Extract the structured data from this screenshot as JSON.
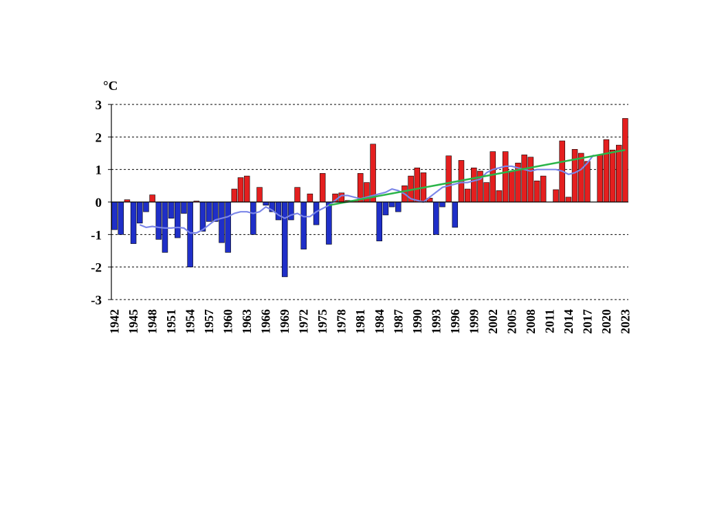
{
  "chart_data": {
    "type": "bar",
    "unit_label": "°C",
    "ylim": [
      -3,
      3
    ],
    "y_ticks": [
      "3",
      "2",
      "1",
      "0",
      "-1",
      "-2",
      "-3"
    ],
    "grid": true,
    "x": [
      1942,
      1943,
      1944,
      1945,
      1946,
      1947,
      1948,
      1949,
      1950,
      1951,
      1952,
      1953,
      1954,
      1955,
      1956,
      1957,
      1958,
      1959,
      1960,
      1961,
      1962,
      1963,
      1964,
      1965,
      1966,
      1967,
      1968,
      1969,
      1970,
      1971,
      1972,
      1973,
      1974,
      1975,
      1976,
      1977,
      1978,
      1979,
      1980,
      1981,
      1982,
      1983,
      1984,
      1985,
      1986,
      1987,
      1988,
      1989,
      1990,
      1991,
      1992,
      1993,
      1994,
      1995,
      1996,
      1997,
      1998,
      1999,
      2000,
      2001,
      2002,
      2003,
      2004,
      2005,
      2006,
      2007,
      2008,
      2009,
      2010,
      2011,
      2012,
      2013,
      2014,
      2015,
      2016,
      2017,
      2018,
      2019,
      2020,
      2021,
      2022,
      2023
    ],
    "x_tick_labels": [
      "1942",
      "1945",
      "1948",
      "1951",
      "1954",
      "1957",
      "1960",
      "1963",
      "1966",
      "1969",
      "1972",
      "1975",
      "1978",
      "1981",
      "1984",
      "1987",
      "1990",
      "1993",
      "1996",
      "1999",
      "2002",
      "2005",
      "2008",
      "2011",
      "2014",
      "2017",
      "2020",
      "2023"
    ],
    "series": [
      {
        "kind": "bar",
        "values": [
          -0.85,
          -1.0,
          0.07,
          -1.28,
          -0.65,
          -0.3,
          0.22,
          -1.15,
          -1.55,
          -0.5,
          -1.1,
          -0.35,
          -2.0,
          0.03,
          -0.9,
          -0.6,
          -0.6,
          -1.25,
          -1.55,
          0.4,
          0.75,
          0.8,
          -1.0,
          0.45,
          -0.1,
          -0.3,
          -0.55,
          -2.3,
          -0.55,
          0.45,
          -1.45,
          0.25,
          -0.7,
          0.88,
          -1.3,
          0.25,
          0.28,
          0.05,
          0.05,
          0.88,
          0.6,
          1.78,
          -1.2,
          -0.4,
          -0.15,
          -0.3,
          0.5,
          0.8,
          1.05,
          0.9,
          0.12,
          -1.0,
          -0.15,
          1.42,
          -0.78,
          1.28,
          0.4,
          1.05,
          0.95,
          0.6,
          1.55,
          0.35,
          1.55,
          0.95,
          1.2,
          1.45,
          1.38,
          0.65,
          0.8,
          0.0,
          0.38,
          1.88,
          0.15,
          1.62,
          1.5,
          1.25,
          0.0,
          1.45,
          1.92,
          1.6,
          1.75,
          2.57
        ],
        "positive_color": "#e41f1f",
        "negative_color": "#1f2fc8"
      },
      {
        "kind": "line",
        "color": "#7b86e8",
        "x": [
          1946,
          1947,
          1948,
          1949,
          1950,
          1951,
          1952,
          1953,
          1954,
          1955,
          1956,
          1957,
          1958,
          1959,
          1960,
          1961,
          1962,
          1963,
          1964,
          1965,
          1966,
          1967,
          1968,
          1969,
          1970,
          1971,
          1972,
          1973,
          1974,
          1975,
          1976,
          1977,
          1978,
          1979,
          1980,
          1981,
          1982,
          1983,
          1984,
          1985,
          1986,
          1987,
          1988,
          1989,
          1990,
          1991,
          1992,
          1993,
          1994,
          1995,
          1996,
          1997,
          1998,
          1999,
          2000,
          2001,
          2002,
          2003,
          2004,
          2005,
          2006,
          2007,
          2008,
          2009,
          2010,
          2011,
          2012,
          2013,
          2014,
          2015,
          2016,
          2017,
          2018
        ],
        "values": [
          -0.7,
          -0.78,
          -0.75,
          -0.78,
          -0.8,
          -0.8,
          -0.78,
          -0.8,
          -0.95,
          -0.95,
          -0.85,
          -0.7,
          -0.55,
          -0.5,
          -0.45,
          -0.35,
          -0.3,
          -0.3,
          -0.35,
          -0.3,
          -0.15,
          -0.25,
          -0.4,
          -0.5,
          -0.4,
          -0.35,
          -0.45,
          -0.45,
          -0.3,
          -0.2,
          -0.1,
          0.05,
          0.2,
          0.2,
          0.15,
          0.1,
          0.15,
          0.2,
          0.25,
          0.3,
          0.4,
          0.35,
          0.25,
          0.1,
          0.05,
          0.0,
          0.15,
          0.3,
          0.45,
          0.5,
          0.55,
          0.6,
          0.6,
          0.65,
          0.7,
          0.9,
          1.0,
          1.05,
          1.1,
          1.1,
          1.05,
          1.0,
          0.95,
          1.0,
          1.0,
          1.0,
          1.0,
          0.95,
          0.85,
          0.9,
          1.0,
          1.2,
          1.45
        ]
      },
      {
        "kind": "line",
        "color": "#2bb54a",
        "x": [
          1976,
          2023
        ],
        "values": [
          -0.1,
          1.6
        ]
      }
    ]
  }
}
